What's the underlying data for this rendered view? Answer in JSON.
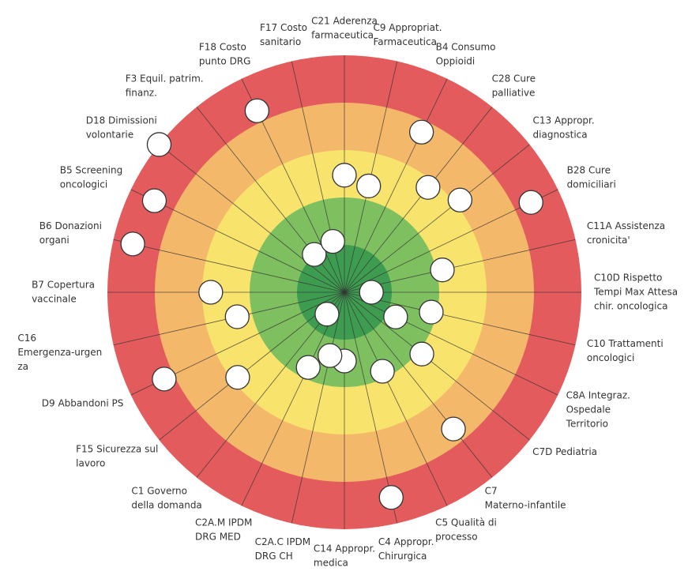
{
  "chart_data": {
    "type": "target",
    "labels": [
      [
        "C21 Aderenza",
        "farmaceutica"
      ],
      [
        "C9 Appropriat.",
        "Farmaceutica"
      ],
      [
        "B4 Consumo",
        "Oppioidi"
      ],
      [
        "C28 Cure",
        "palliative"
      ],
      [
        "C13 Appropr.",
        "diagnostica"
      ],
      [
        "B28 Cure",
        "domiciliari"
      ],
      [
        "C11A Assistenza",
        "cronicita'"
      ],
      [
        "C10D Rispetto",
        "Tempi Max Attesa",
        "chir. oncologica"
      ],
      [
        "C10 Trattamenti",
        "oncologici"
      ],
      [
        "C8A Integraz.",
        "Ospedale",
        "Territorio"
      ],
      [
        "C7D Pediatria"
      ],
      [
        "C7",
        "Materno-infantile"
      ],
      [
        "C5 Qualità di",
        "processo"
      ],
      [
        "C4 Appropr.",
        "Chirurgica"
      ],
      [
        "C14 Appropr.",
        "medica"
      ],
      [
        "C2A.C IPDM",
        "DRG CH"
      ],
      [
        "C2A.M IPDM",
        "DRG MED"
      ],
      [
        "C1 Governo",
        "della domanda"
      ],
      [
        "F15 Sicurezza sul",
        "lavoro"
      ],
      [
        "D9 Abbandoni PS"
      ],
      [
        "C16",
        "Emergenza-urgen",
        "za"
      ],
      [
        "B7 Copertura",
        "vaccinale"
      ],
      [
        "B6 Donazioni",
        "organi"
      ],
      [
        "B5 Screening",
        "oncologici"
      ],
      [
        "D18 Dimissioni",
        "volontarie"
      ],
      [
        "F3 Equil. patrim.",
        "finanz."
      ],
      [
        "F18 Costo",
        "punto DRG"
      ],
      [
        "F17 Costo",
        "sanitario"
      ]
    ],
    "values": [
      2.47,
      2.3,
      3.75,
      2.83,
      3.12,
      4.37,
      2.12,
      0.57,
      1.88,
      1.2,
      2.09,
      3.69,
      1.85,
      4.44,
      1.45,
      1.37,
      1.76,
      0.59,
      2.88,
      4.22,
      2.32,
      2.82,
      4.58,
      4.45,
      5.0,
      1.02,
      4.25,
      1.1
    ],
    "rlim": [
      0,
      5
    ],
    "rticks": [
      0,
      1,
      2,
      3,
      4,
      5
    ],
    "ring_colors": [
      "#3e9c50",
      "#7ebf5f",
      "#f8e36d",
      "#f4b86b",
      "#e35b5c"
    ],
    "marker_color": "#ffffff"
  }
}
